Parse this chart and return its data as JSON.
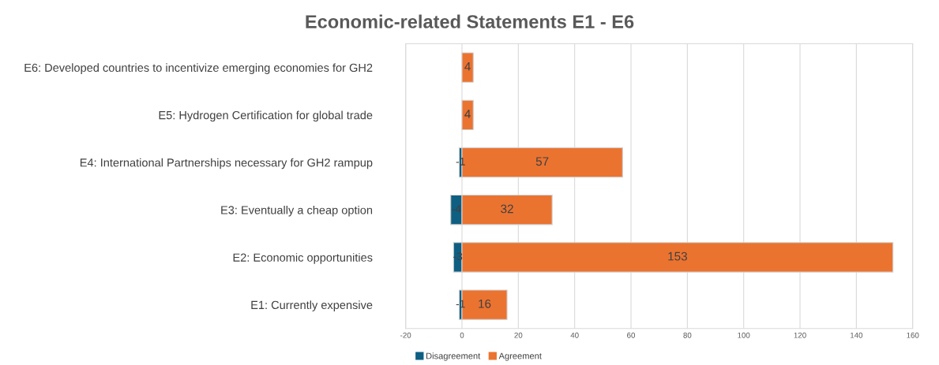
{
  "chart_data": {
    "type": "bar",
    "title": "Economic-related Statements E1 - E6",
    "orientation": "horizontal",
    "stacked": true,
    "categories": [
      "E6: Developed countries to incentivize emerging economies for GH2",
      "E5: Hydrogen Certification for global trade",
      "E4: International Partnerships necessary for GH2 rampup",
      "E3: Eventually a cheap option",
      "E2: Economic opportunities",
      "E1: Currently expensive"
    ],
    "series": [
      {
        "name": "Disagreement",
        "color": "#0e5f82",
        "values": [
          null,
          null,
          -1,
          -4,
          -3,
          -1
        ],
        "value_labels": [
          null,
          null,
          "-1",
          "-4",
          "-3",
          "-1"
        ]
      },
      {
        "name": "Agreement",
        "color": "#eb7330",
        "values": [
          4,
          4,
          57,
          32,
          153,
          16
        ],
        "value_labels": [
          "4",
          "4",
          "57",
          "32",
          "153",
          "16"
        ]
      }
    ],
    "xlim": [
      -20,
      160
    ],
    "xticks": [
      -20,
      0,
      20,
      40,
      60,
      80,
      100,
      120,
      140,
      160
    ],
    "grid": "x",
    "legend": "bottom"
  }
}
